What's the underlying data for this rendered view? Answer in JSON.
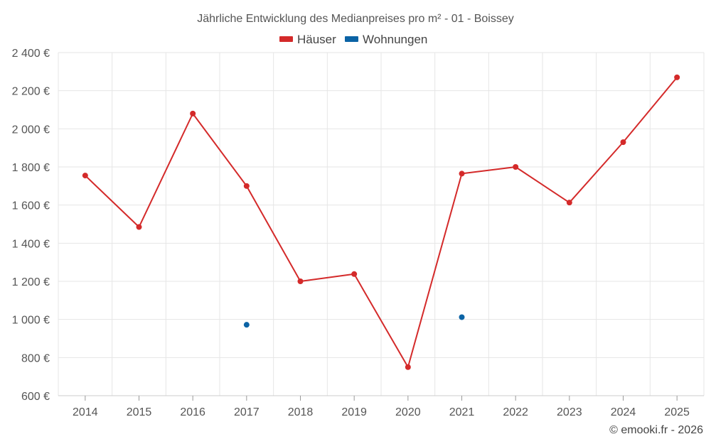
{
  "chart_data": {
    "type": "line",
    "title": "Jährliche Entwicklung des Medianpreises pro m² - 01 - Boissey",
    "xlabel": "",
    "ylabel": "",
    "categories": [
      "2014",
      "2015",
      "2016",
      "2017",
      "2018",
      "2019",
      "2020",
      "2021",
      "2022",
      "2023",
      "2024",
      "2025"
    ],
    "ylim": [
      600,
      2400
    ],
    "yticks": [
      600,
      800,
      1000,
      1200,
      1400,
      1600,
      1800,
      2000,
      2200,
      2400
    ],
    "ytick_labels": [
      "600 €",
      "800 €",
      "1 000 €",
      "1 200 €",
      "1 400 €",
      "1 600 €",
      "1 800 €",
      "2 000 €",
      "2 200 €",
      "2 400 €"
    ],
    "grid": true,
    "legend_position": "top-center",
    "series": [
      {
        "name": "Häuser",
        "color": "#d42a2a",
        "values": [
          1755,
          1485,
          2080,
          1700,
          1200,
          1238,
          750,
          1765,
          1800,
          1613,
          1930,
          2270
        ]
      },
      {
        "name": "Wohnungen",
        "color": "#0b63a5",
        "values": [
          null,
          null,
          null,
          972,
          null,
          null,
          null,
          1012,
          null,
          null,
          null,
          null
        ]
      }
    ]
  },
  "credit": "© emooki.fr - 2026"
}
